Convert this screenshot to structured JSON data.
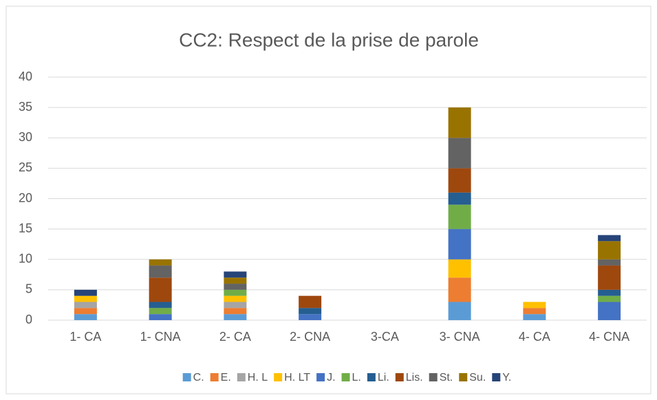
{
  "chart_data": {
    "type": "stacked_bar",
    "title": "CC2: Respect de la prise de parole",
    "categories": [
      "1- CA",
      "1- CNA",
      "2- CA",
      "2- CNA",
      "3-CA",
      "3- CNA",
      "4- CA",
      "4- CNA"
    ],
    "series": [
      {
        "name": "C.",
        "color": "#5b9bd5",
        "values": [
          1,
          0,
          1,
          0,
          0,
          3,
          1,
          0
        ]
      },
      {
        "name": "E.",
        "color": "#ed7d31",
        "values": [
          1,
          0,
          1,
          0,
          0,
          4,
          1,
          0
        ]
      },
      {
        "name": "H. L",
        "color": "#a5a5a5",
        "values": [
          1,
          0,
          1,
          0,
          0,
          0,
          0,
          0
        ]
      },
      {
        "name": "H. LT",
        "color": "#ffc000",
        "values": [
          1,
          0,
          1,
          0,
          0,
          3,
          1,
          0
        ]
      },
      {
        "name": "J.",
        "color": "#4472c4",
        "values": [
          0,
          1,
          0,
          1,
          0,
          5,
          0,
          3
        ]
      },
      {
        "name": "L.",
        "color": "#70ad47",
        "values": [
          0,
          1,
          1,
          0,
          0,
          4,
          0,
          1
        ]
      },
      {
        "name": "Li.",
        "color": "#255e91",
        "values": [
          0,
          1,
          0,
          1,
          0,
          2,
          0,
          1
        ]
      },
      {
        "name": "Lis.",
        "color": "#9e480e",
        "values": [
          0,
          4,
          0,
          2,
          0,
          4,
          0,
          4
        ]
      },
      {
        "name": "St.",
        "color": "#636363",
        "values": [
          0,
          2,
          1,
          0,
          0,
          5,
          0,
          1
        ]
      },
      {
        "name": "Su.",
        "color": "#997300",
        "values": [
          0,
          1,
          1,
          0,
          0,
          5,
          0,
          3
        ]
      },
      {
        "name": "Y.",
        "color": "#264478",
        "values": [
          1,
          0,
          1,
          0,
          0,
          0,
          0,
          1
        ]
      }
    ],
    "ylim": [
      0,
      40
    ],
    "yticks": [
      0,
      5,
      10,
      15,
      20,
      25,
      30,
      35,
      40
    ],
    "grid": true,
    "legend": "bottom"
  }
}
